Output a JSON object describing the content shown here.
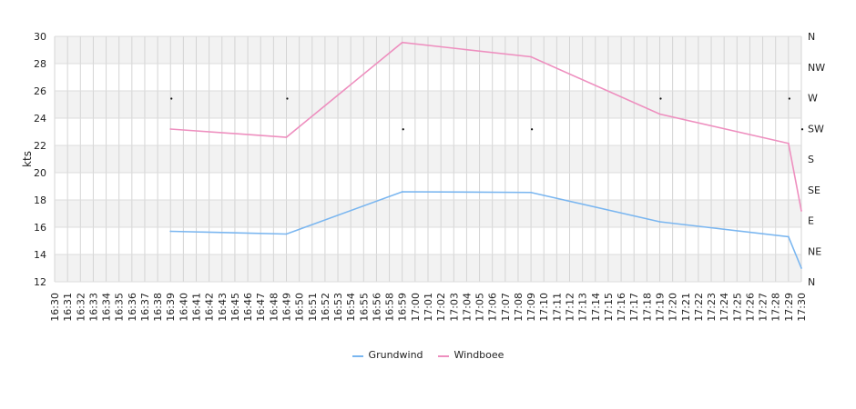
{
  "chart_data": {
    "type": "line",
    "ylabel": "kts",
    "ylim": [
      12,
      30
    ],
    "y_ticks": [
      "12",
      "14",
      "16",
      "18",
      "20",
      "22",
      "24",
      "26",
      "28",
      "30"
    ],
    "x_ticks": [
      "16:30",
      "16:31",
      "16:32",
      "16:33",
      "16:34",
      "16:35",
      "16:36",
      "16:37",
      "16:38",
      "16:39",
      "16:40",
      "16:41",
      "16:42",
      "16:43",
      "16:45",
      "16:46",
      "16:47",
      "16:48",
      "16:49",
      "16:50",
      "16:51",
      "16:52",
      "16:53",
      "16:54",
      "16:55",
      "16:56",
      "16:58",
      "16:59",
      "17:00",
      "17:01",
      "17:02",
      "17:03",
      "17:04",
      "17:05",
      "17:06",
      "17:07",
      "17:08",
      "17:09",
      "17:10",
      "17:11",
      "17:12",
      "17:13",
      "17:14",
      "17:15",
      "17:16",
      "17:17",
      "17:18",
      "17:19",
      "17:20",
      "17:21",
      "17:22",
      "17:23",
      "17:24",
      "17:25",
      "17:26",
      "17:27",
      "17:28",
      "17:29",
      "17:30"
    ],
    "direction_ticks": [
      "N",
      "NW",
      "W",
      "SW",
      "S",
      "SE",
      "E",
      "NE",
      "N"
    ],
    "grid": true,
    "band_colors": [
      "#f2f2f2",
      "#ffffff"
    ],
    "series": [
      {
        "name": "Grundwind",
        "color": "#7ab6f0",
        "points": [
          {
            "x": "16:39",
            "y": 15.7
          },
          {
            "x": "16:49",
            "y": 15.5
          },
          {
            "x": "16:59",
            "y": 18.6
          },
          {
            "x": "17:09",
            "y": 18.55
          },
          {
            "x": "17:19",
            "y": 16.4
          },
          {
            "x": "17:29",
            "y": 15.3
          },
          {
            "x": "17:30",
            "y": 13.0
          }
        ]
      },
      {
        "name": "Windboee",
        "color": "#ee8fbf",
        "points": [
          {
            "x": "16:39",
            "y": 23.2
          },
          {
            "x": "16:49",
            "y": 22.6
          },
          {
            "x": "16:59",
            "y": 29.55
          },
          {
            "x": "17:09",
            "y": 28.5
          },
          {
            "x": "17:19",
            "y": 24.3
          },
          {
            "x": "17:29",
            "y": 22.15
          },
          {
            "x": "17:30",
            "y": 17.2
          }
        ]
      }
    ],
    "direction_markers": [
      {
        "x": "16:39",
        "direction": "W"
      },
      {
        "x": "16:49",
        "direction": "W"
      },
      {
        "x": "16:59",
        "direction": "SW"
      },
      {
        "x": "17:09",
        "direction": "SW"
      },
      {
        "x": "17:19",
        "direction": "W"
      },
      {
        "x": "17:29",
        "direction": "W"
      },
      {
        "x": "17:30",
        "direction": "SW"
      }
    ],
    "legend_position": "bottom"
  }
}
